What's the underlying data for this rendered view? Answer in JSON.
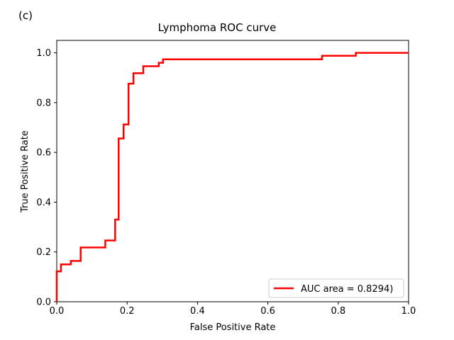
{
  "panel_label": "(c)",
  "chart_data": {
    "type": "line",
    "title": "Lymphoma ROC curve",
    "xlabel": "False Positive Rate",
    "ylabel": "True Positive Rate",
    "xlim": [
      0.0,
      1.0
    ],
    "ylim": [
      0.0,
      1.05
    ],
    "xticks": [
      0.0,
      0.2,
      0.4,
      0.6,
      0.8,
      1.0
    ],
    "xtick_labels": [
      "0.0",
      "0.2",
      "0.4",
      "0.6",
      "0.8",
      "1.0"
    ],
    "yticks": [
      0.0,
      0.2,
      0.4,
      0.6,
      0.8,
      1.0
    ],
    "ytick_labels": [
      "0.0",
      "0.2",
      "0.4",
      "0.6",
      "0.8",
      "1.0"
    ],
    "grid": false,
    "legend_position": "lower-right",
    "series": [
      {
        "name": "AUC area = 0.8294)",
        "color": "#ff0000",
        "step": true,
        "x": [
          0.0,
          0.0,
          0.012,
          0.04,
          0.068,
          0.138,
          0.166,
          0.176,
          0.19,
          0.204,
          0.218,
          0.246,
          0.29,
          0.302,
          0.754,
          0.85,
          1.0
        ],
        "y": [
          0.0,
          0.122,
          0.15,
          0.164,
          0.218,
          0.246,
          0.33,
          0.656,
          0.712,
          0.876,
          0.918,
          0.946,
          0.96,
          0.974,
          0.988,
          1.0,
          1.0
        ]
      }
    ]
  }
}
